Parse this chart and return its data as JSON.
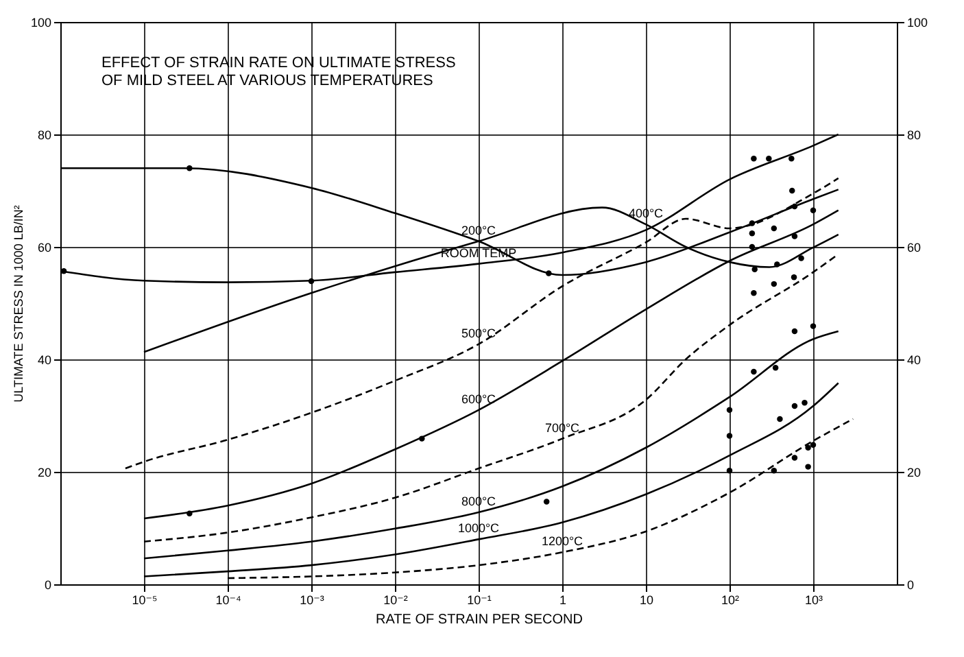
{
  "chart_data": {
    "type": "line",
    "title": "EFFECT OF STRAIN RATE ON ULTIMATE STRESS\nOF MILD STEEL AT VARIOUS TEMPERATURES",
    "xlabel": "RATE OF STRAIN PER SECOND",
    "ylabel": "ULTIMATE STRESS IN 1000 LB/IN²",
    "log": "x",
    "grid": true,
    "xlim": [
      1e-06,
      10000.0
    ],
    "xticks": [
      {
        "value": 1e-05,
        "label": "10⁻⁵"
      },
      {
        "value": 0.0001,
        "label": "10⁻⁴"
      },
      {
        "value": 0.001,
        "label": "10⁻³"
      },
      {
        "value": 0.01,
        "label": "10⁻²"
      },
      {
        "value": 0.1,
        "label": "10⁻¹"
      },
      1,
      10,
      {
        "value": 100,
        "label": "10²"
      },
      {
        "value": 1000,
        "label": "10³"
      }
    ],
    "ylim": [
      0,
      100
    ],
    "yticks": [
      0,
      20,
      40,
      60,
      80,
      100
    ],
    "y2lim": [
      0,
      100
    ],
    "y2ticks": [
      0,
      20,
      40,
      60,
      80,
      100
    ],
    "series": [
      {
        "name": "ROOM TEMP",
        "color": "#000000",
        "line_style": "solid",
        "x": [
          1e-06,
          1e-05,
          0.0001,
          0.001,
          0.01,
          0.1,
          1,
          10,
          100,
          1000,
          2000
        ],
        "values": [
          55.7,
          54,
          53.7,
          54,
          55.5,
          57,
          59,
          63,
          72,
          78,
          80
        ]
      },
      {
        "name": "200°C",
        "color": "#000000",
        "line_style": "solid",
        "x": [
          1e-06,
          3e-05,
          0.001,
          0.01,
          0.1,
          1,
          10,
          100,
          1000,
          2000
        ],
        "values": [
          74,
          74,
          70.5,
          66,
          61,
          55,
          57.3,
          62.6,
          68.5,
          70.2
        ]
      },
      {
        "name": "400°C",
        "color": "#000000",
        "line_style": "solid",
        "x": [
          1e-05,
          0.001,
          0.1,
          3,
          10,
          30,
          100,
          300,
          1000,
          2000
        ],
        "values": [
          41.3,
          51.8,
          61,
          67,
          64,
          60,
          57.3,
          56.4,
          59.9,
          62.2
        ]
      },
      {
        "name": "500°C",
        "color": "#000000",
        "line_style": "dashed",
        "x": [
          6e-06,
          1e-05,
          0.0001,
          0.001,
          0.01,
          0.1,
          1,
          10,
          30,
          100,
          1000,
          2000
        ],
        "values": [
          20.6,
          21.8,
          25.7,
          30.5,
          36.2,
          42.7,
          53,
          60.8,
          65,
          63.3,
          69.5,
          72.2
        ]
      },
      {
        "name": "600°C",
        "color": "#000000",
        "line_style": "solid",
        "x": [
          1e-05,
          0.0001,
          0.001,
          0.01,
          0.1,
          1,
          10,
          100,
          1000,
          2000
        ],
        "values": [
          11.7,
          14,
          17.9,
          24,
          31,
          39.7,
          48.9,
          57.5,
          64,
          66.5
        ]
      },
      {
        "name": "700°C",
        "color": "#000000",
        "line_style": "dashed",
        "x": [
          1e-05,
          0.0001,
          0.001,
          0.01,
          0.1,
          1,
          10,
          30,
          100,
          1000,
          2000
        ],
        "values": [
          7.6,
          9.2,
          11.9,
          15.4,
          20.6,
          25.9,
          32.8,
          40,
          46.1,
          55.5,
          58.7
        ]
      },
      {
        "name": "800°C",
        "color": "#000000",
        "line_style": "solid",
        "x": [
          1e-05,
          0.0001,
          0.001,
          0.01,
          0.1,
          1,
          10,
          100,
          1000,
          2000
        ],
        "values": [
          4.6,
          6,
          7.6,
          9.9,
          12.8,
          17.4,
          24.3,
          33.3,
          43.6,
          45
        ]
      },
      {
        "name": "1000°C",
        "color": "#000000",
        "line_style": "solid",
        "x": [
          1e-05,
          0.0001,
          0.001,
          0.01,
          0.1,
          1,
          10,
          100,
          1000,
          2000
        ],
        "values": [
          1.4,
          2.3,
          3.4,
          5.3,
          8,
          11,
          16,
          22.9,
          31.7,
          35.8
        ]
      },
      {
        "name": "1200°C",
        "color": "#000000",
        "line_style": "dashed",
        "x": [
          0.0001,
          0.001,
          0.01,
          0.1,
          1,
          10,
          100,
          1000,
          3000
        ],
        "values": [
          1.1,
          1.4,
          2.1,
          3.4,
          5.7,
          9.4,
          16.3,
          25.5,
          29.4
        ]
      },
      {
        "type": "scatter",
        "color": "#000000",
        "marker": "circle",
        "x": [
          1.1e-06,
          3.5e-05,
          0.001,
          0.69,
          195,
          295,
          550,
          186,
          560,
          186,
          100,
          340,
          600,
          870,
          1000,
          870
        ],
        "values": [
          55.7,
          74,
          53.9,
          55.3,
          75.7,
          75.7,
          75.7,
          64.2,
          70,
          60,
          20.2,
          20.2,
          22.5,
          24.3,
          24.8,
          20.9
        ]
      },
      {
        "type": "scatter",
        "color": "#000000",
        "marker": "circle",
        "x": [
          3.5e-05,
          0.021,
          0.65,
          186,
          340,
          600,
          1000,
          600,
          200,
          370,
          720,
          195,
          340,
          590,
          100,
          100,
          195,
          355,
          600,
          1000,
          400,
          600,
          790
        ],
        "values": [
          12.6,
          25.9,
          14.7,
          62.4,
          63.3,
          67.2,
          66.5,
          61.9,
          56,
          56.9,
          58,
          51.8,
          53.4,
          54.6,
          31,
          26.4,
          37.8,
          38.5,
          45,
          45.9,
          29.4,
          31.7,
          32.3
        ]
      }
    ]
  }
}
